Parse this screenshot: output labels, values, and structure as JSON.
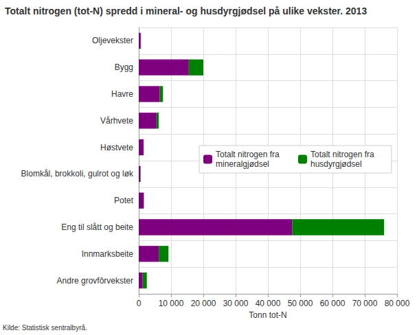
{
  "chart_data": {
    "type": "bar",
    "orientation": "horizontal",
    "stacked": true,
    "title": "Totalt nitrogen (tot-N) spredd i mineral- og husdyrgjødsel på ulike vekster. 2013",
    "x_label": "Tonn tot-N",
    "annotations": [
      "Kilde: Statistisk sentralbyrå."
    ],
    "categories": [
      "Oljevekster",
      "Bygg",
      "Havre",
      "Vårhvete",
      "Høstvete",
      "Blomkål, brokkoli, gulrot og løk",
      "Potet",
      "Eng til slått og beite",
      "Innmarksbeite",
      "Andre grovfôrvekster"
    ],
    "series": [
      {
        "name": "Totalt nitrogen fra mineralgjødsel",
        "color": "#7f007f",
        "values": [
          600,
          15500,
          6500,
          5500,
          1500,
          500,
          1500,
          47500,
          6200,
          1200
        ]
      },
      {
        "name": "Totalt nitrogen fra husdyrgjødsel",
        "color": "#008000",
        "values": [
          0,
          4500,
          1000,
          700,
          0,
          100,
          100,
          28500,
          3000,
          1300
        ]
      }
    ],
    "xlim": [
      0,
      80000
    ],
    "xticks": [
      0,
      {
        "value": 10000,
        "label": "10 000"
      },
      {
        "value": 20000,
        "label": "20 000"
      },
      {
        "value": 30000,
        "label": "30 000"
      },
      {
        "value": 40000,
        "label": "40 000"
      },
      {
        "value": 50000,
        "label": "50 000"
      },
      {
        "value": 60000,
        "label": "60 000"
      },
      {
        "value": 70000,
        "label": "70 000"
      },
      {
        "value": 80000,
        "label": "80 000"
      }
    ],
    "grid": true,
    "legend": "right"
  }
}
